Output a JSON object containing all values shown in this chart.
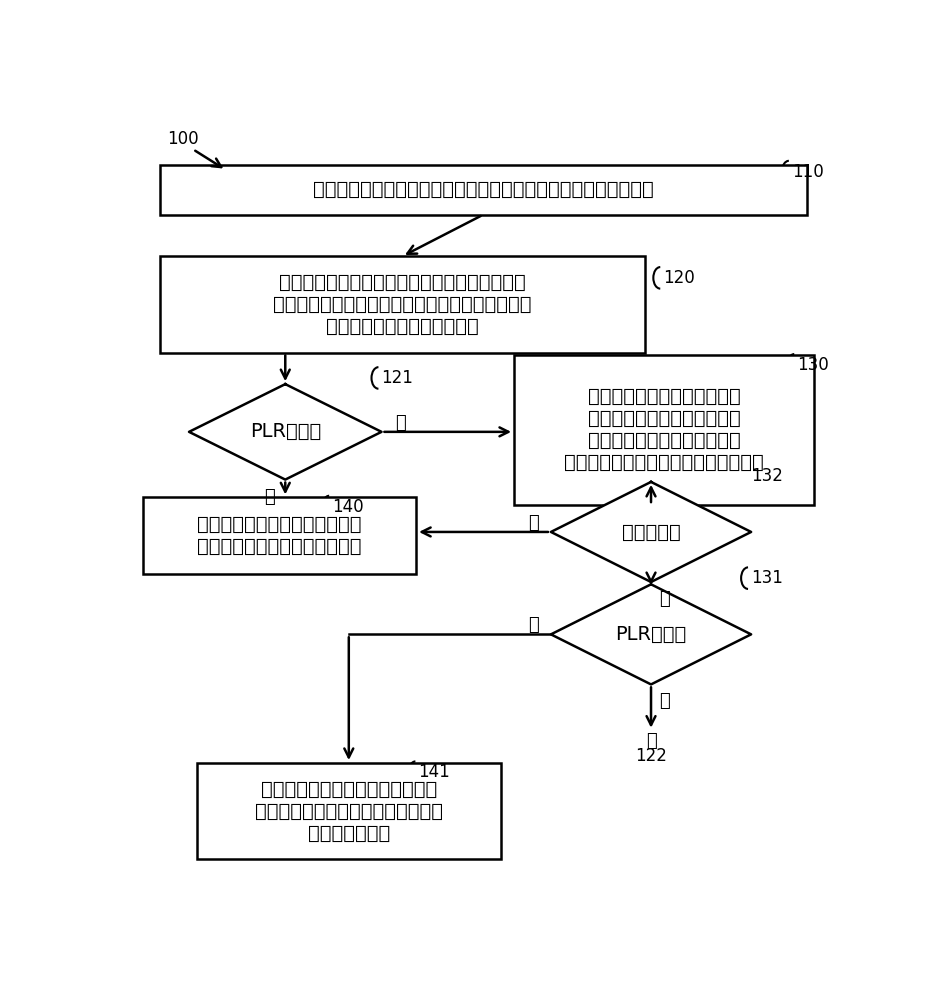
{
  "bg_color": "#ffffff",
  "line_color": "#000000",
  "box_fill": "#ffffff",
  "box_edge": "#000000",
  "diamond_fill": "#ffffff",
  "diamond_edge": "#000000",
  "font_color": "#000000",
  "font_size_main": 14,
  "font_size_label": 13,
  "font_size_ref": 12,
  "fig_width": 9.39,
  "fig_height": 10.0,
  "block110_text": "选择用于网络节点与无线设备中的第一无线设备之间的传输的波束",
  "block110_ref": "110",
  "block120_text": "确定在将部分物理层资源分配给所选择的波束的\n传输范围内的一个或多个无线设备的第一集合之后\n是否仍有部分物理层资源可用",
  "block120_ref": "120",
  "block130_text": "调整所选择的波束，使得不在\n最初选择的波束的传输范围内\n的一个或多个附加无线设备的\n第二集合在调整后的波束的传输范围内",
  "block130_ref": "130",
  "diamond121_text": "PLR可用？",
  "diamond121_ref": "121",
  "block140_text": "在所选择的波束上调度网络节点\n与第一无线设备集合之间的传输",
  "block140_ref": "140",
  "diamond132_text": "波束满足？",
  "diamond132_ref": "132",
  "diamond131_text": "PLR可用？",
  "diamond131_ref": "131",
  "block141_text": "使用调整后的波束来调度网络节点\n与第一无线设备集合和第二无线设备\n集合之间的传输",
  "block141_ref": "141",
  "ref100": "100",
  "ref122": "122",
  "yes_label": "是",
  "no_label": "否",
  "to_label": "至"
}
